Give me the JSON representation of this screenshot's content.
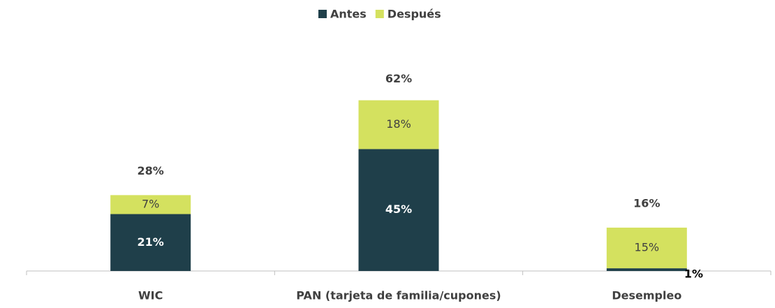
{
  "chart_data": {
    "type": "stacked_bar",
    "categories": [
      "WIC",
      "PAN (tarjeta de familia/cupones)",
      "Desempleo"
    ],
    "series": [
      {
        "name": "Antes",
        "color": "#1f3f4a",
        "values": [
          21,
          45,
          1
        ],
        "value_labels": [
          "21%",
          "45%",
          "1%"
        ]
      },
      {
        "name": "Después",
        "color": "#d4e15f",
        "values": [
          7,
          18,
          15
        ],
        "value_labels": [
          "7%",
          "18%",
          "15%"
        ]
      }
    ],
    "totals": [
      28,
      62,
      16
    ],
    "total_labels": [
      "28%",
      "62%",
      "16%"
    ],
    "legend": "top"
  }
}
